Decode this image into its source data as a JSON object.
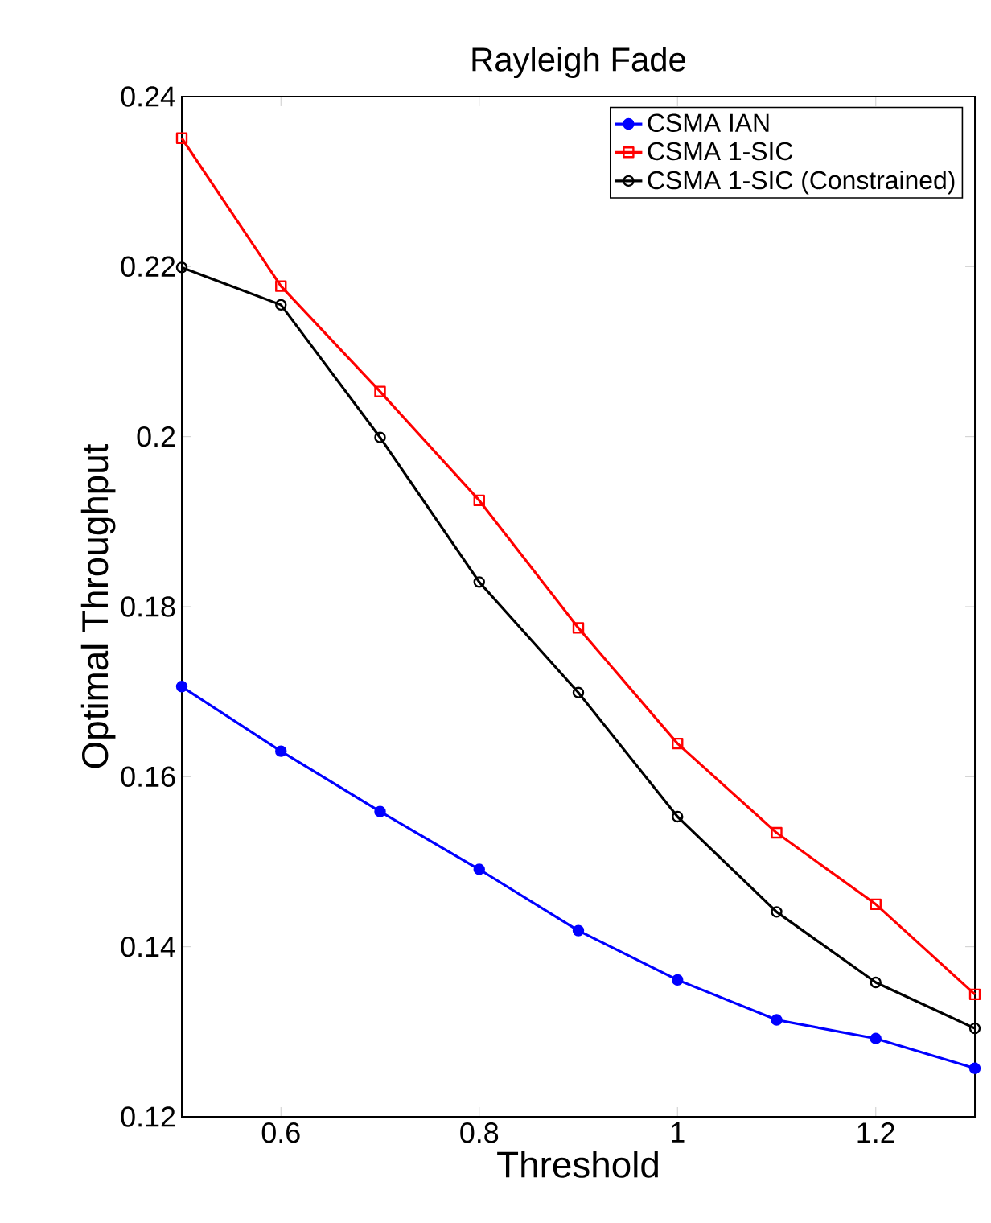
{
  "chart_data": {
    "type": "line",
    "title": "Rayleigh Fade",
    "xlabel": "Threshold",
    "ylabel": "Optimal Throughput",
    "x": [
      0.5,
      0.6,
      0.7,
      0.8,
      0.9,
      1.0,
      1.1,
      1.2,
      1.3
    ],
    "xlim": [
      0.5,
      1.3
    ],
    "xticks": [
      0.6,
      0.8,
      1,
      1.2
    ],
    "ylim": [
      0.12,
      0.24
    ],
    "yticks": [
      0.12,
      0.14,
      0.16,
      0.18,
      0.2,
      0.22,
      0.24
    ],
    "legend": "top right",
    "series": [
      {
        "name": "CSMA IAN",
        "color": "#0000ff",
        "marker": "circle",
        "values": [
          0.1706,
          0.163,
          0.1559,
          0.1491,
          0.1419,
          0.1361,
          0.1314,
          0.1292,
          0.1257
        ]
      },
      {
        "name": "CSMA 1-SIC",
        "color": "#ff0000",
        "marker": "square",
        "values": [
          0.2351,
          0.2177,
          0.2053,
          0.1925,
          0.1775,
          0.1639,
          0.1534,
          0.145,
          0.1344
        ]
      },
      {
        "name": "CSMA 1-SIC (Constrained)",
        "color": "#000000",
        "marker": "open circle",
        "values": [
          0.2199,
          0.2155,
          0.1999,
          0.1829,
          0.1699,
          0.1553,
          0.1441,
          0.1358,
          0.1304
        ]
      }
    ]
  }
}
